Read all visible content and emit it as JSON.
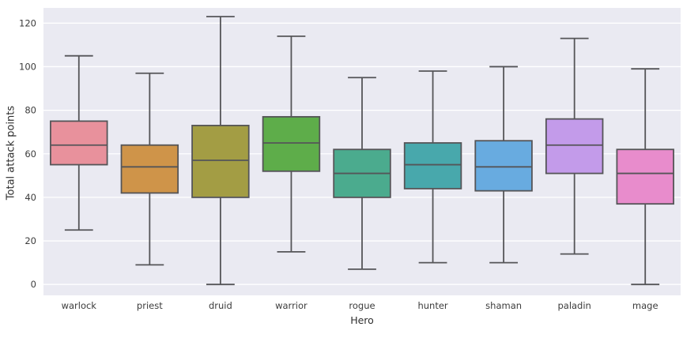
{
  "figure": {
    "background": "#ffffff",
    "plot_background": "#eaeaf2",
    "grid_color": "#ffffff",
    "line_color": "#555558",
    "tick_label_color": "#3c3c3c",
    "axis_label_color": "#2e2e2e"
  },
  "chart_data": {
    "type": "box",
    "title": "",
    "xlabel": "Hero",
    "ylabel": "Total attack points",
    "categories": [
      "warlock",
      "priest",
      "druid",
      "warrior",
      "rogue",
      "hunter",
      "shaman",
      "paladin",
      "mage"
    ],
    "yticks": [
      0,
      20,
      40,
      60,
      80,
      100,
      120
    ],
    "ylim": [
      -5,
      127
    ],
    "grid": true,
    "legend": "none",
    "series": [
      {
        "name": "warlock",
        "whisker_low": 25,
        "q1": 55,
        "median": 64,
        "q3": 75,
        "whisker_high": 105,
        "color": "#e8919c"
      },
      {
        "name": "priest",
        "whisker_low": 9,
        "q1": 42,
        "median": 54,
        "q3": 64,
        "whisker_high": 97,
        "color": "#cf9449"
      },
      {
        "name": "druid",
        "whisker_low": 0,
        "q1": 40,
        "median": 57,
        "q3": 73,
        "whisker_high": 123,
        "color": "#a39d44"
      },
      {
        "name": "warrior",
        "whisker_low": 15,
        "q1": 52,
        "median": 65,
        "q3": 77,
        "whisker_high": 114,
        "color": "#5ead4a"
      },
      {
        "name": "rogue",
        "whisker_low": 7,
        "q1": 40,
        "median": 51,
        "q3": 62,
        "whisker_high": 95,
        "color": "#4bab8e"
      },
      {
        "name": "hunter",
        "whisker_low": 10,
        "q1": 44,
        "median": 55,
        "q3": 65,
        "whisker_high": 98,
        "color": "#48a8ac"
      },
      {
        "name": "shaman",
        "whisker_low": 10,
        "q1": 43,
        "median": 54,
        "q3": 66,
        "whisker_high": 100,
        "color": "#68abe0"
      },
      {
        "name": "paladin",
        "whisker_low": 14,
        "q1": 51,
        "median": 64,
        "q3": 76,
        "whisker_high": 113,
        "color": "#c39bea"
      },
      {
        "name": "mage",
        "whisker_low": 0,
        "q1": 37,
        "median": 51,
        "q3": 62,
        "whisker_high": 99,
        "color": "#e88ccc"
      }
    ]
  }
}
